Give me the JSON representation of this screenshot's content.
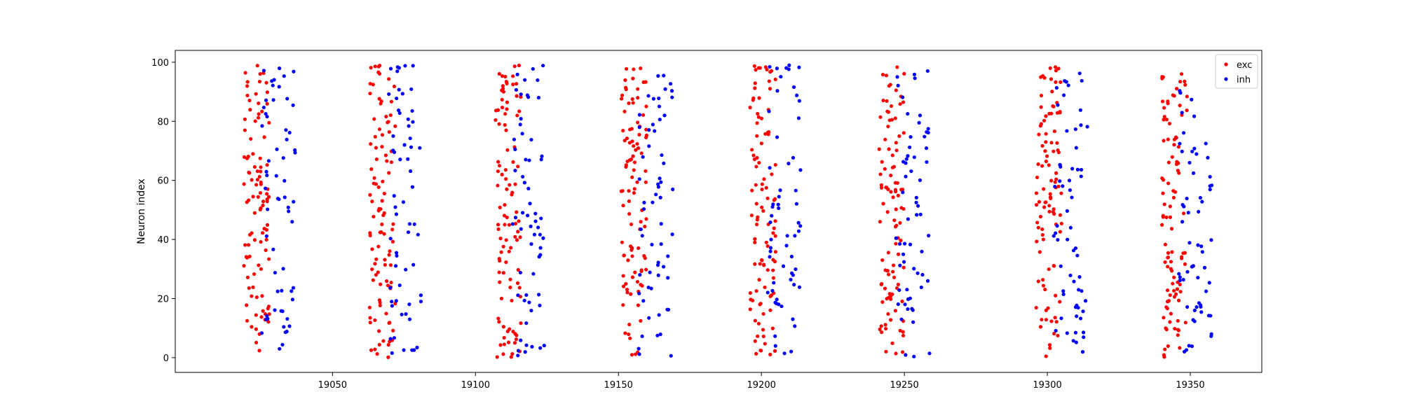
{
  "chart_data": {
    "type": "scatter",
    "title": "",
    "xlabel": "",
    "ylabel": "Neuron index",
    "xlim": [
      18995,
      19375
    ],
    "ylim": [
      -5,
      104
    ],
    "x_ticks": [
      19050,
      19100,
      19150,
      19200,
      19250,
      19300,
      19350
    ],
    "x_tick_labels": [
      "19050",
      "19100",
      "19150",
      "19200",
      "19250",
      "19300",
      "19350"
    ],
    "y_ticks": [
      0,
      20,
      40,
      60,
      80,
      100
    ],
    "y_tick_labels": [
      "0",
      "20",
      "40",
      "60",
      "80",
      "100"
    ],
    "grid": false,
    "legend_position": "top-right",
    "burst_centers": [
      19025,
      19069,
      19113,
      19157,
      19202,
      19247,
      19302,
      19346
    ],
    "series": [
      {
        "name": "exc",
        "color": "#ff0000",
        "neuron_range": [
          0,
          99
        ],
        "x_range_relative_to_burst": [
          -6,
          3
        ],
        "points_per_burst": 100
      },
      {
        "name": "inh",
        "color": "#0000ff",
        "neuron_range": [
          0,
          99
        ],
        "x_range_relative_to_burst": [
          0,
          12
        ],
        "points_per_burst": 60
      }
    ]
  }
}
